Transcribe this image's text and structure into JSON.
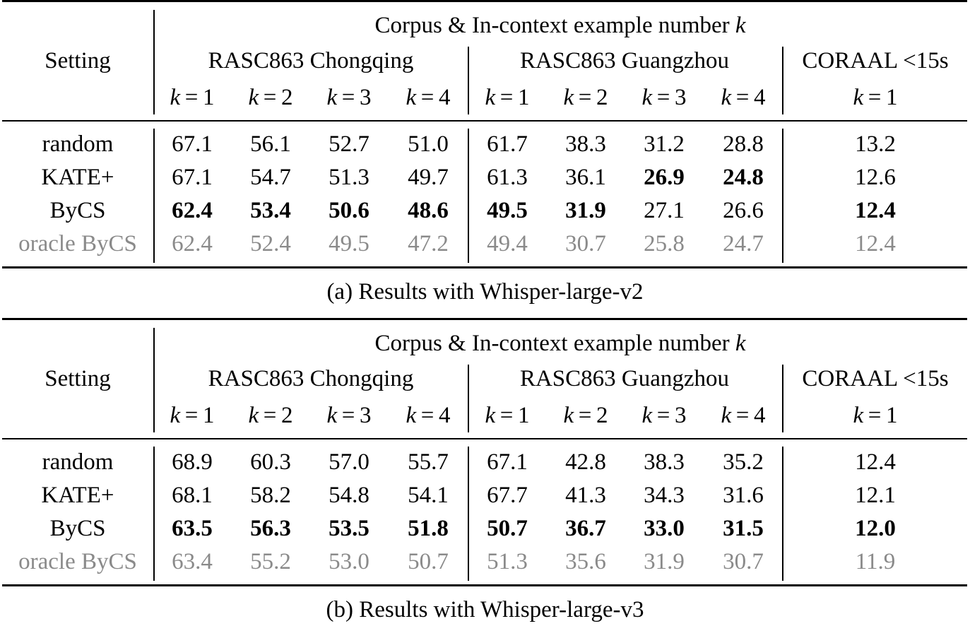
{
  "tables": [
    {
      "caption": "(a) Results with Whisper-large-v2",
      "header": {
        "setting_label": "Setting",
        "group_title": "Corpus & In-context example number",
        "group_title_var": "k",
        "corpora": [
          "RASC863 Chongqing",
          "RASC863 Guangzhou",
          "CORAAL <15s"
        ],
        "k_labels": [
          "k = 1",
          "k = 2",
          "k = 3",
          "k = 4",
          "k = 1",
          "k = 2",
          "k = 3",
          "k = 4",
          "k = 1"
        ]
      },
      "rows": [
        {
          "setting": "random",
          "style": "normal",
          "values": [
            "67.1",
            "56.1",
            "52.7",
            "51.0",
            "61.7",
            "38.3",
            "31.2",
            "28.8",
            "13.2"
          ],
          "bold": [
            false,
            false,
            false,
            false,
            false,
            false,
            false,
            false,
            false
          ]
        },
        {
          "setting": "KATE+",
          "style": "normal",
          "values": [
            "67.1",
            "54.7",
            "51.3",
            "49.7",
            "61.3",
            "36.1",
            "26.9",
            "24.8",
            "12.6"
          ],
          "bold": [
            false,
            false,
            false,
            false,
            false,
            false,
            true,
            true,
            false
          ]
        },
        {
          "setting": "ByCS",
          "style": "normal",
          "values": [
            "62.4",
            "53.4",
            "50.6",
            "48.6",
            "49.5",
            "31.9",
            "27.1",
            "26.6",
            "12.4"
          ],
          "bold": [
            true,
            true,
            true,
            true,
            true,
            true,
            false,
            false,
            true
          ]
        },
        {
          "setting": "oracle ByCS",
          "style": "gray",
          "values": [
            "62.4",
            "52.4",
            "49.5",
            "47.2",
            "49.4",
            "30.7",
            "25.8",
            "24.7",
            "12.4"
          ],
          "bold": [
            false,
            false,
            false,
            false,
            false,
            false,
            false,
            false,
            false
          ]
        }
      ]
    },
    {
      "caption": "(b) Results with Whisper-large-v3",
      "header": {
        "setting_label": "Setting",
        "group_title": "Corpus & In-context example number",
        "group_title_var": "k",
        "corpora": [
          "RASC863 Chongqing",
          "RASC863 Guangzhou",
          "CORAAL <15s"
        ],
        "k_labels": [
          "k = 1",
          "k = 2",
          "k = 3",
          "k = 4",
          "k = 1",
          "k = 2",
          "k = 3",
          "k = 4",
          "k = 1"
        ]
      },
      "rows": [
        {
          "setting": "random",
          "style": "normal",
          "values": [
            "68.9",
            "60.3",
            "57.0",
            "55.7",
            "67.1",
            "42.8",
            "38.3",
            "35.2",
            "12.4"
          ],
          "bold": [
            false,
            false,
            false,
            false,
            false,
            false,
            false,
            false,
            false
          ]
        },
        {
          "setting": "KATE+",
          "style": "normal",
          "values": [
            "68.1",
            "58.2",
            "54.8",
            "54.1",
            "67.7",
            "41.3",
            "34.3",
            "31.6",
            "12.1"
          ],
          "bold": [
            false,
            false,
            false,
            false,
            false,
            false,
            false,
            false,
            false
          ]
        },
        {
          "setting": "ByCS",
          "style": "normal",
          "values": [
            "63.5",
            "56.3",
            "53.5",
            "51.8",
            "50.7",
            "36.7",
            "33.0",
            "31.5",
            "12.0"
          ],
          "bold": [
            true,
            true,
            true,
            true,
            true,
            true,
            true,
            true,
            true
          ]
        },
        {
          "setting": "oracle ByCS",
          "style": "gray",
          "values": [
            "63.4",
            "55.2",
            "53.0",
            "50.7",
            "51.3",
            "35.6",
            "31.9",
            "30.7",
            "11.9"
          ],
          "bold": [
            false,
            false,
            false,
            false,
            false,
            false,
            false,
            false,
            false
          ]
        }
      ]
    }
  ]
}
